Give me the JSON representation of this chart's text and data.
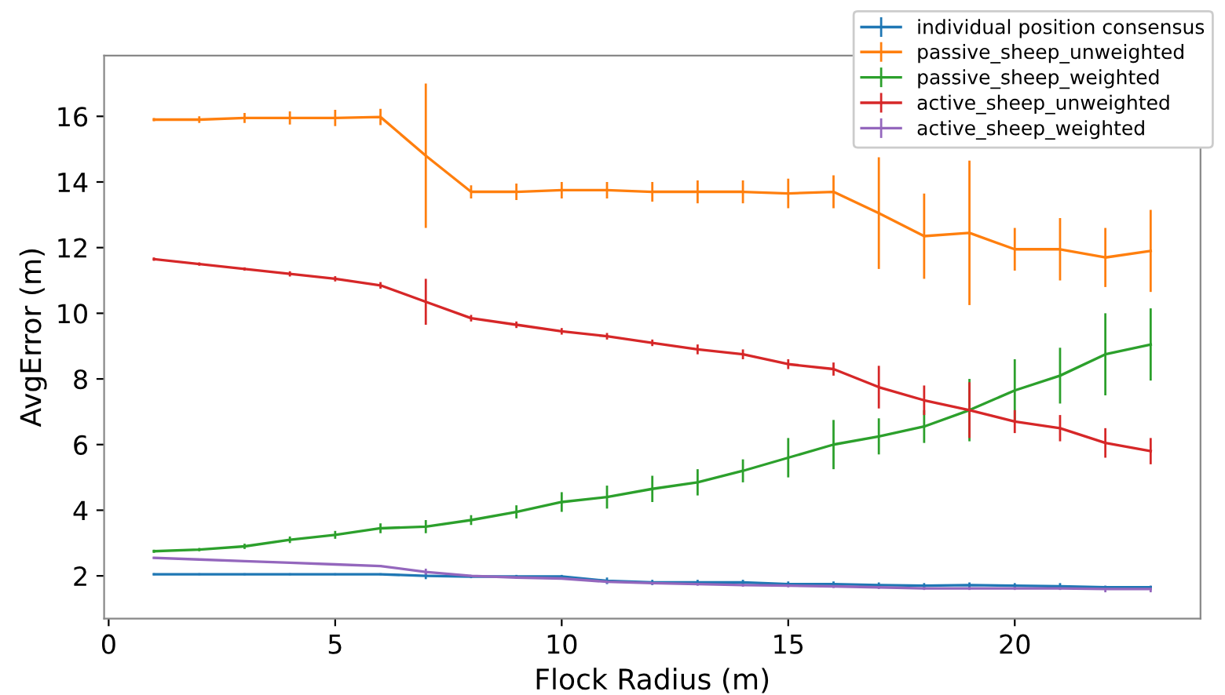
{
  "chart_data": {
    "type": "line",
    "xlabel": "Flock Radius (m)",
    "ylabel": "AvgError (m)",
    "x": [
      1,
      2,
      3,
      4,
      5,
      6,
      7,
      8,
      9,
      10,
      11,
      12,
      13,
      14,
      15,
      16,
      17,
      18,
      19,
      20,
      21,
      22,
      23
    ],
    "xlim": [
      -0.1,
      24.1
    ],
    "xticks": [
      0,
      5,
      10,
      15,
      20
    ],
    "ylim": [
      0.7,
      17.85
    ],
    "yticks": [
      2,
      4,
      6,
      8,
      10,
      12,
      14,
      16
    ],
    "grid": false,
    "legend": "top right",
    "marker": "none",
    "line_style": "solid",
    "series": [
      {
        "name": "individual position consensus",
        "color": "#1f77b4",
        "values": [
          2.05,
          2.05,
          2.05,
          2.05,
          2.05,
          2.05,
          2.0,
          1.98,
          1.98,
          1.98,
          1.85,
          1.8,
          1.8,
          1.8,
          1.75,
          1.75,
          1.72,
          1.7,
          1.72,
          1.7,
          1.68,
          1.65,
          1.65
        ],
        "errors": [
          0.03,
          0.03,
          0.03,
          0.03,
          0.03,
          0.03,
          0.1,
          0.05,
          0.05,
          0.05,
          0.1,
          0.08,
          0.08,
          0.08,
          0.08,
          0.08,
          0.08,
          0.08,
          0.08,
          0.08,
          0.1,
          0.05,
          0.05
        ]
      },
      {
        "name": "passive_sheep_unweighted",
        "color": "#ff7f0e",
        "values": [
          15.9,
          15.9,
          15.95,
          15.95,
          15.95,
          15.98,
          14.8,
          13.7,
          13.7,
          13.75,
          13.75,
          13.7,
          13.7,
          13.7,
          13.65,
          13.7,
          13.05,
          12.35,
          12.45,
          11.95,
          11.95,
          11.7,
          11.9
        ],
        "errors": [
          0.05,
          0.1,
          0.15,
          0.2,
          0.25,
          0.25,
          2.2,
          0.2,
          0.25,
          0.25,
          0.25,
          0.3,
          0.35,
          0.35,
          0.45,
          0.5,
          1.7,
          1.3,
          2.2,
          0.65,
          0.95,
          0.9,
          1.25
        ]
      },
      {
        "name": "passive_sheep_weighted",
        "color": "#2ca02c",
        "values": [
          2.75,
          2.8,
          2.9,
          3.1,
          3.25,
          3.45,
          3.5,
          3.7,
          3.95,
          4.25,
          4.4,
          4.65,
          4.85,
          5.2,
          5.6,
          6.0,
          6.25,
          6.55,
          7.05,
          7.65,
          8.1,
          8.75,
          9.05
        ],
        "errors": [
          0.05,
          0.05,
          0.08,
          0.1,
          0.12,
          0.15,
          0.2,
          0.15,
          0.2,
          0.3,
          0.35,
          0.4,
          0.4,
          0.35,
          0.6,
          0.75,
          0.55,
          0.5,
          0.95,
          0.95,
          0.85,
          1.25,
          1.1
        ]
      },
      {
        "name": "active_sheep_unweighted",
        "color": "#d62728",
        "values": [
          11.65,
          11.5,
          11.35,
          11.2,
          11.05,
          10.85,
          10.35,
          9.85,
          9.65,
          9.45,
          9.3,
          9.1,
          8.9,
          8.75,
          8.45,
          8.3,
          7.75,
          7.35,
          7.05,
          6.7,
          6.5,
          6.05,
          5.8
        ],
        "errors": [
          0.05,
          0.05,
          0.05,
          0.08,
          0.08,
          0.1,
          0.7,
          0.1,
          0.1,
          0.1,
          0.1,
          0.1,
          0.15,
          0.15,
          0.15,
          0.2,
          0.65,
          0.45,
          0.85,
          0.35,
          0.4,
          0.45,
          0.4
        ]
      },
      {
        "name": "active_sheep_weighted",
        "color": "#9467bd",
        "values": [
          2.55,
          2.5,
          2.45,
          2.4,
          2.35,
          2.3,
          2.12,
          2.0,
          1.95,
          1.92,
          1.82,
          1.78,
          1.75,
          1.72,
          1.7,
          1.68,
          1.65,
          1.62,
          1.62,
          1.62,
          1.62,
          1.6,
          1.6
        ],
        "errors": [
          0.02,
          0.02,
          0.02,
          0.02,
          0.02,
          0.03,
          0.1,
          0.03,
          0.03,
          0.03,
          0.05,
          0.05,
          0.05,
          0.05,
          0.05,
          0.05,
          0.05,
          0.05,
          0.05,
          0.05,
          0.05,
          0.1,
          0.1
        ]
      }
    ]
  }
}
